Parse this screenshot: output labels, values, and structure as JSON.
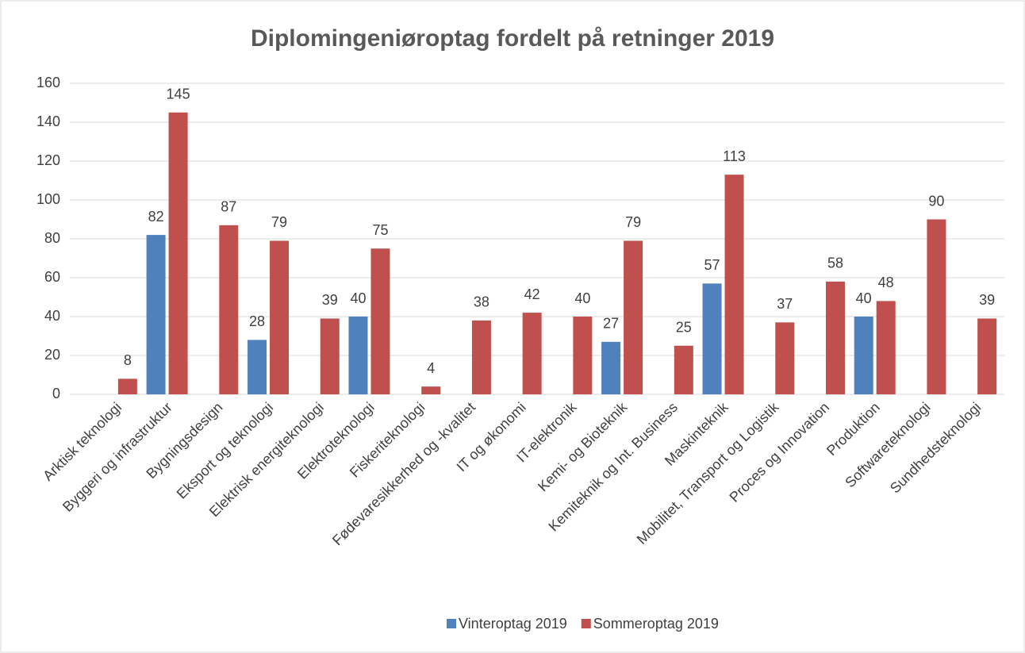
{
  "chart_data": {
    "type": "bar",
    "title": "Diplomingeniøroptag fordelt på retninger  2019",
    "categories": [
      "Arktisk teknologi",
      "Byggeri og infrastruktur",
      "Bygningsdesign",
      "Eksport og teknologi",
      "Elektrisk energiteknologi",
      "Elektroteknologi",
      "Fiskeriteknologi",
      "Fødevaresikkerhed og -kvalitet",
      "IT og økonomi",
      "IT-elektronik",
      "Kemi- og Bioteknik",
      "Kemiteknik og Int. Business",
      "Maskinteknik",
      "Mobilitet, Transport og Logistik",
      "Proces og Innovation",
      "Produktion",
      "Softwareteknologi",
      "Sundhedsteknologi"
    ],
    "series": [
      {
        "name": "Vinteroptag 2019",
        "color": "#4f81bd",
        "values": [
          null,
          82,
          null,
          28,
          null,
          40,
          null,
          null,
          null,
          null,
          27,
          null,
          57,
          null,
          null,
          40,
          null,
          null
        ]
      },
      {
        "name": "Sommeroptag 2019",
        "color": "#c0504d",
        "values": [
          8,
          145,
          87,
          79,
          39,
          75,
          4,
          38,
          42,
          40,
          79,
          25,
          113,
          37,
          58,
          48,
          90,
          39
        ]
      }
    ],
    "ylim": [
      0,
      160
    ],
    "yticks": [
      0,
      20,
      40,
      60,
      80,
      100,
      120,
      140,
      160
    ],
    "grid": true,
    "legend": "bottom"
  }
}
